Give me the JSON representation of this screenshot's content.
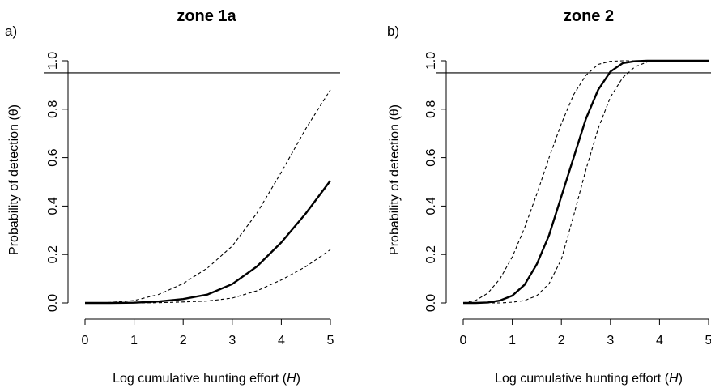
{
  "figure": {
    "panels": [
      {
        "label": "a)"
      },
      {
        "label": "b)"
      }
    ]
  },
  "chart_data": [
    {
      "type": "line",
      "title": "zone 1a",
      "xlabel": "Log cumulative hunting effort (H)",
      "xlabel_main": "Log cumulative hunting effort (",
      "xlabel_var": "H",
      "xlabel_close": ")",
      "ylabel": "Probability of detection (θ)",
      "xlim": [
        0,
        5
      ],
      "ylim": [
        0,
        1
      ],
      "xticks": [
        0,
        1,
        2,
        3,
        4,
        5
      ],
      "yticks": [
        "0.0",
        "0.2",
        "0.4",
        "0.6",
        "0.8",
        "1.0"
      ],
      "reference_line": 0.95,
      "grid": false,
      "x": [
        0,
        0.5,
        1,
        1.5,
        2,
        2.5,
        3,
        3.5,
        4,
        4.5,
        5
      ],
      "series": [
        {
          "style": "solid-thick",
          "values": [
            0,
            0,
            0.001,
            0.006,
            0.016,
            0.035,
            0.078,
            0.15,
            0.25,
            0.37,
            0.505
          ]
        },
        {
          "style": "dashed",
          "values": [
            0,
            0.002,
            0.01,
            0.035,
            0.08,
            0.145,
            0.235,
            0.37,
            0.54,
            0.72,
            0.88
          ]
        },
        {
          "style": "dashed",
          "values": [
            0,
            0,
            0,
            0.001,
            0.004,
            0.008,
            0.02,
            0.05,
            0.095,
            0.15,
            0.22
          ]
        }
      ]
    },
    {
      "type": "line",
      "title": "zone 2",
      "xlabel": "Log cumulative hunting effort (H)",
      "xlabel_main": "Log cumulative hunting effort (",
      "xlabel_var": "H",
      "xlabel_close": ")",
      "ylabel": "Probability of detection (θ)",
      "xlim": [
        0,
        5
      ],
      "ylim": [
        0,
        1
      ],
      "xticks": [
        0,
        1,
        2,
        3,
        4,
        5
      ],
      "yticks": [
        "0.0",
        "0.2",
        "0.4",
        "0.6",
        "0.8",
        "1.0"
      ],
      "reference_line": 0.95,
      "grid": false,
      "x": [
        0,
        0.25,
        0.5,
        0.75,
        1,
        1.25,
        1.5,
        1.75,
        2,
        2.25,
        2.5,
        2.75,
        3,
        3.25,
        3.5,
        3.75,
        4,
        4.5,
        5
      ],
      "series": [
        {
          "style": "solid-thick",
          "values": [
            0,
            0,
            0.002,
            0.01,
            0.03,
            0.075,
            0.16,
            0.28,
            0.44,
            0.6,
            0.76,
            0.88,
            0.955,
            0.99,
            0.998,
            1,
            1,
            1,
            1
          ]
        },
        {
          "style": "dashed",
          "values": [
            0,
            0.01,
            0.04,
            0.1,
            0.19,
            0.31,
            0.45,
            0.6,
            0.74,
            0.86,
            0.94,
            0.985,
            0.998,
            1,
            1,
            1,
            1,
            1,
            1
          ]
        },
        {
          "style": "dashed",
          "values": [
            0,
            0,
            0,
            0,
            0.003,
            0.01,
            0.03,
            0.08,
            0.18,
            0.36,
            0.55,
            0.72,
            0.85,
            0.93,
            0.975,
            0.995,
            1,
            1,
            1
          ]
        }
      ]
    }
  ]
}
